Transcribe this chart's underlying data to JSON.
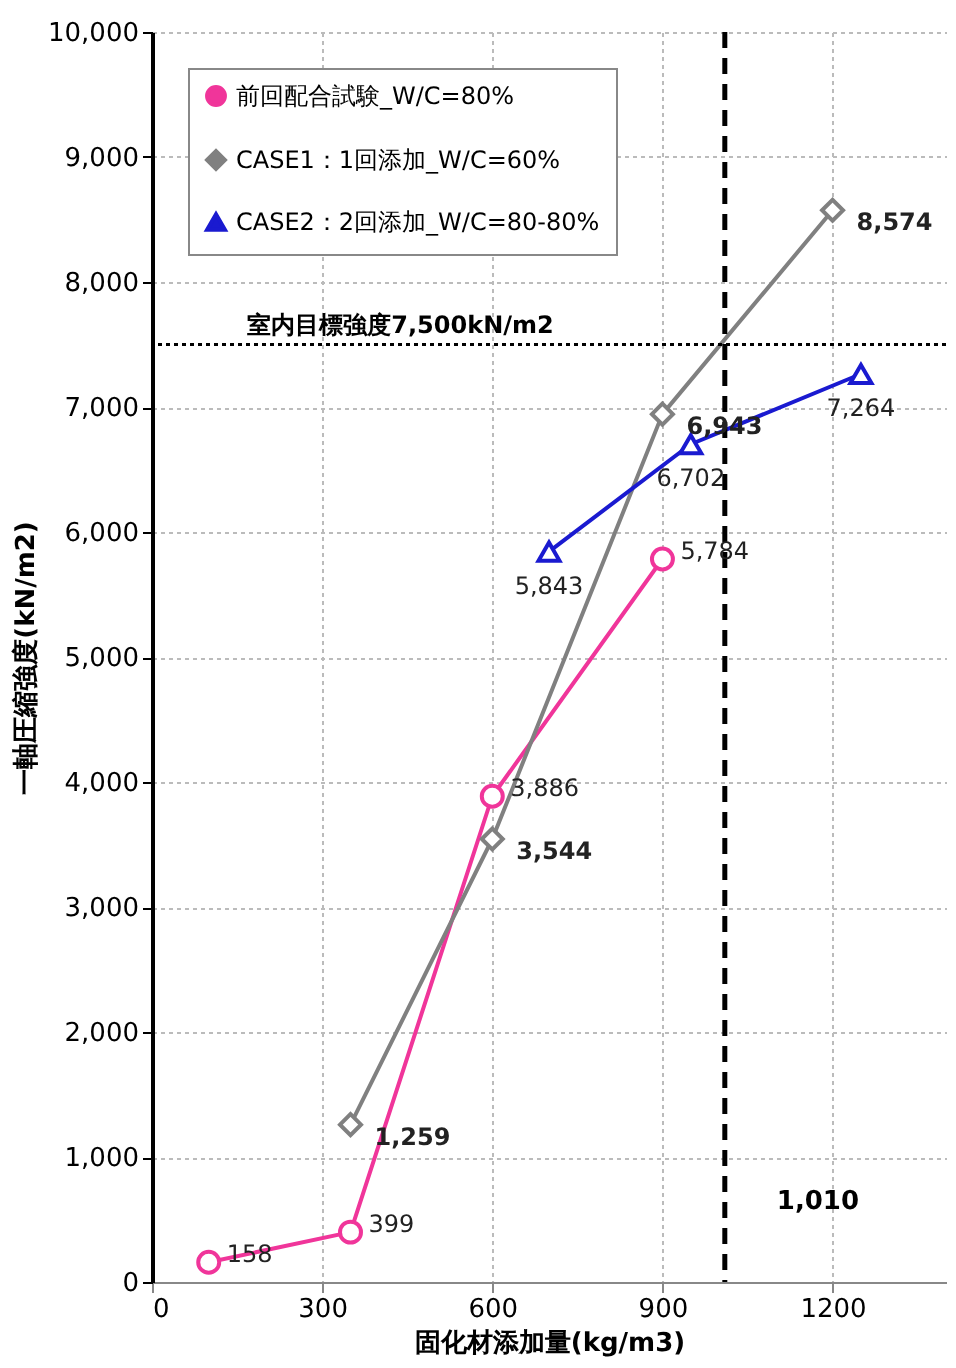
{
  "chart_data": {
    "type": "line",
    "xlabel": "固化材添加量(kg/m3)",
    "ylabel": "一軸圧縮強度(kN/m2)",
    "xlim": [
      0,
      1400
    ],
    "xticks": [
      0,
      300,
      600,
      900,
      1200
    ],
    "ylim": [
      0,
      10000
    ],
    "yticks": [
      0,
      {
        "value": 1000,
        "label": "1,000"
      },
      {
        "value": 2000,
        "label": "2,000"
      },
      {
        "value": 3000,
        "label": "3,000"
      },
      {
        "value": 4000,
        "label": "4,000"
      },
      {
        "value": 5000,
        "label": "5,000"
      },
      {
        "value": 6000,
        "label": "6,000"
      },
      {
        "value": 7000,
        "label": "7,000"
      },
      {
        "value": 8000,
        "label": "8,000"
      },
      {
        "value": 9000,
        "label": "9,000"
      },
      {
        "value": 10000,
        "label": "10,000"
      }
    ],
    "series": [
      {
        "name": "前回配合試験_W/C=80%",
        "color": "#f0359a",
        "marker": "circle",
        "x": [
          100,
          350,
          600,
          900
        ],
        "values": [
          158,
          399,
          3886,
          5784
        ],
        "value_labels": [
          "158",
          "399",
          "3,886",
          "5,784"
        ]
      },
      {
        "name": "CASE1：1回添加_W/C=60%",
        "color": "#808080",
        "marker": "diamond",
        "x": [
          350,
          600,
          900,
          1200
        ],
        "values": [
          1259,
          3544,
          6943,
          8574
        ],
        "value_labels": [
          "1,259",
          "3,544",
          "6,943",
          "8,574"
        ]
      },
      {
        "name": "CASE2：2回添加_W/C=80-80%",
        "color": "#1a1ad0",
        "marker": "triangle",
        "x": [
          700,
          950,
          1250
        ],
        "values": [
          5843,
          6702,
          7264
        ],
        "value_labels": [
          "5,843",
          "6,702",
          "7,264"
        ]
      }
    ],
    "ref_lines": [
      {
        "axis": "y",
        "value": 7500,
        "label": "室内目標強度7,500kN/m2",
        "line_style": "dotted",
        "color": "#000000"
      },
      {
        "axis": "x",
        "value": 1010,
        "label": "1,010",
        "line_style": "dashed",
        "color": "#000000"
      }
    ],
    "grid": true,
    "legend": "top left"
  }
}
